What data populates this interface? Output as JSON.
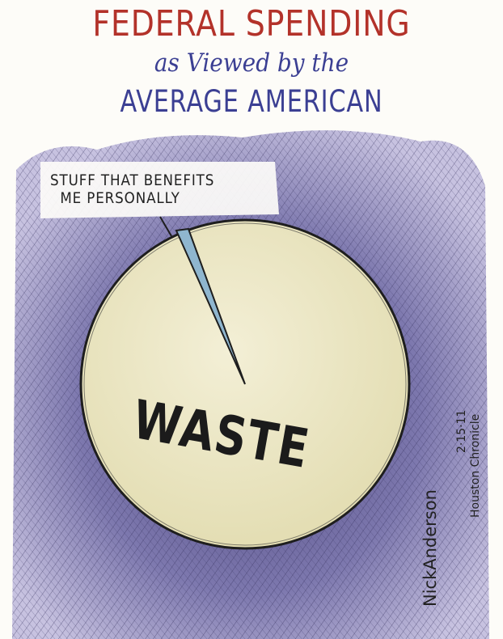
{
  "header": {
    "title": "FEDERAL SPENDING",
    "subtitle": "as Viewed by the",
    "audience": "AVERAGE AMERICAN"
  },
  "pie": {
    "pointer_label_line1": "STUFF THAT BENEFITS",
    "pointer_label_line2": "ME PERSONALLY",
    "main_label": "WASTE"
  },
  "signature": {
    "artist": "NickAnderson",
    "date": "2·15·11",
    "publication": "Houston Chronicle"
  },
  "colors": {
    "title_red": "#b3322a",
    "title_blue": "#3b3f93",
    "pie_fill": "#ede7c3",
    "hatch_purple": "#6b62a0",
    "slice_blue": "#8fb6cf"
  }
}
